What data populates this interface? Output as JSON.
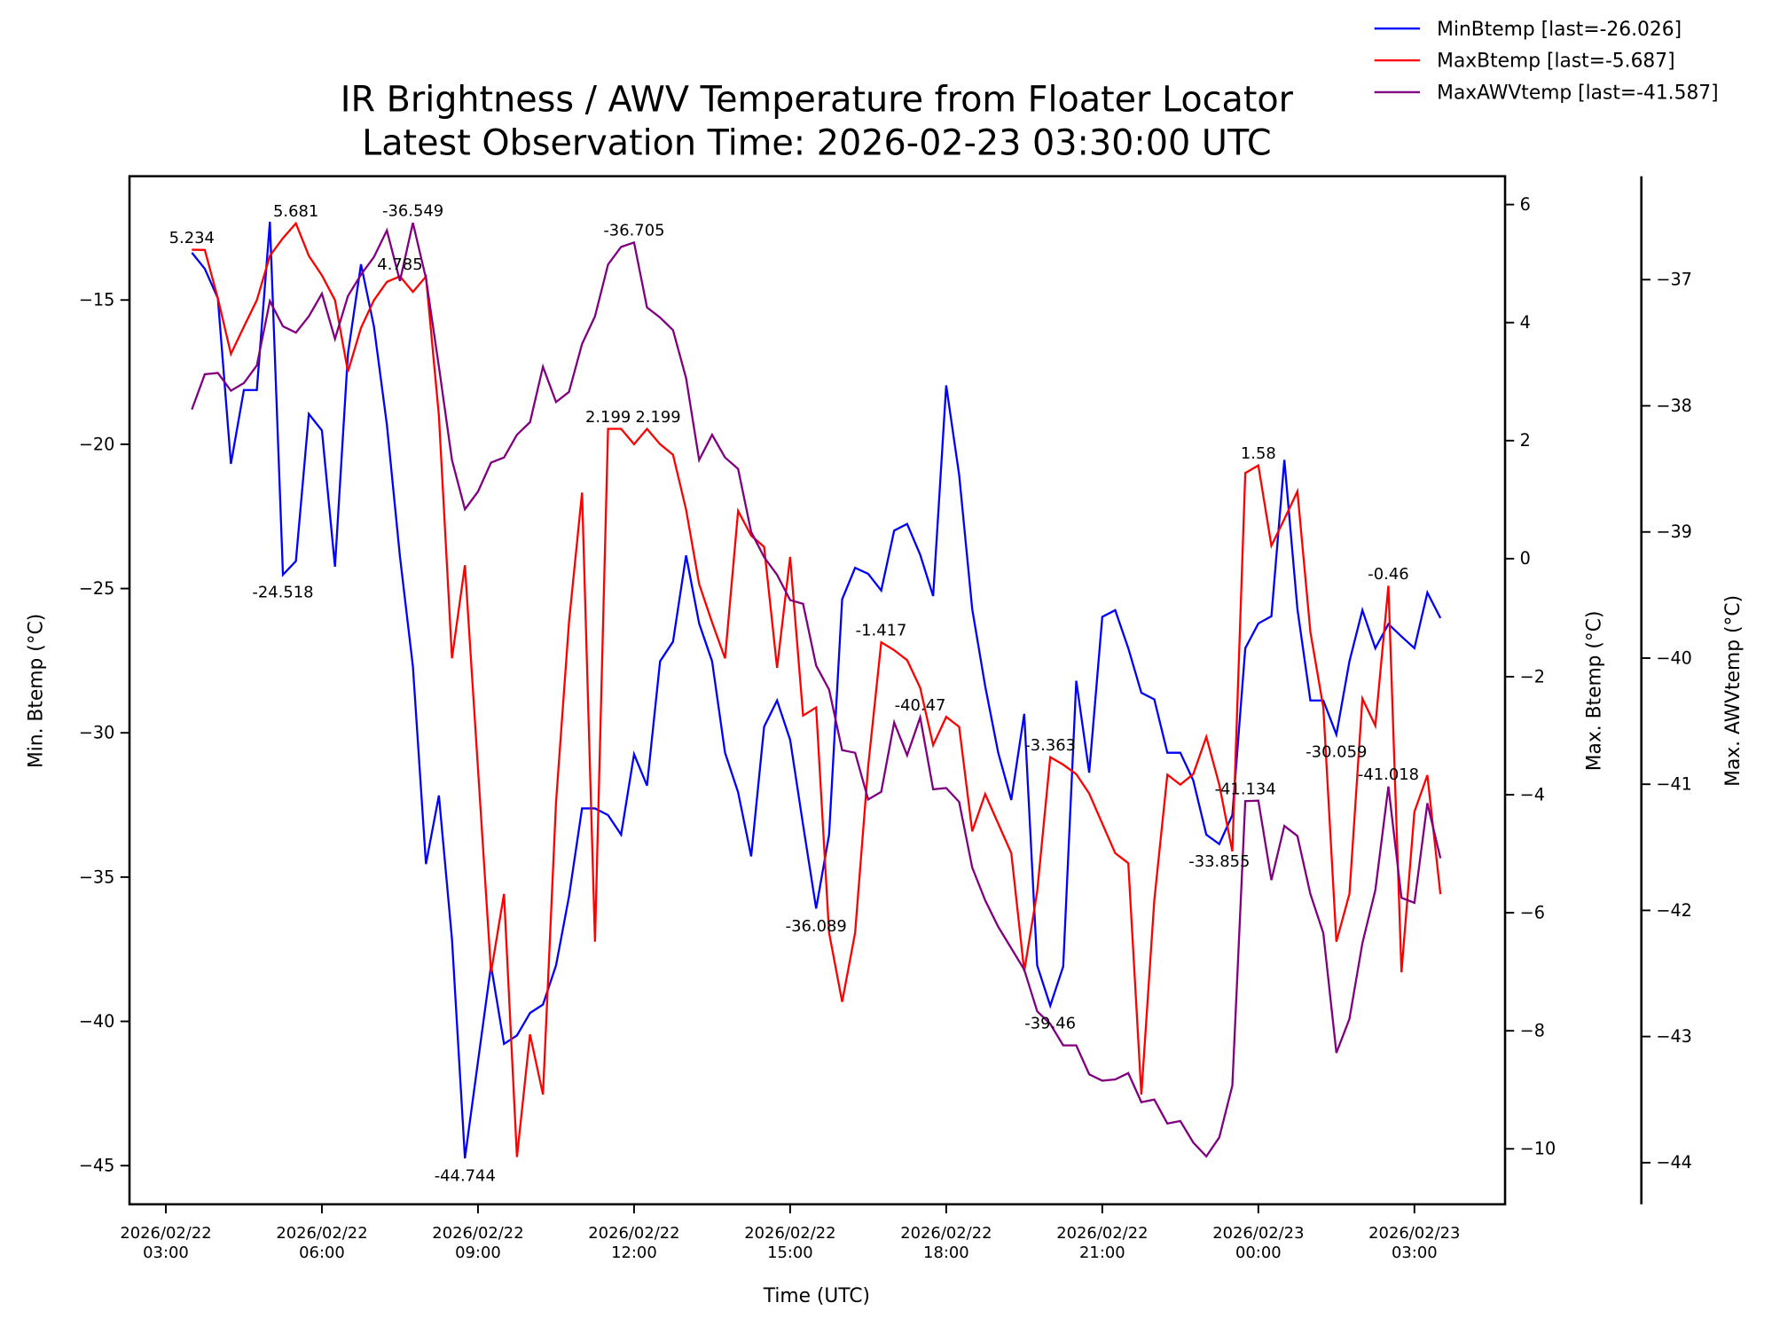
{
  "chart_data": {
    "type": "line",
    "title": "IR Brightness / AWV Temperature from Floater Locator",
    "subtitle": "Latest Observation Time: 2026-02-23 03:30:00 UTC",
    "xlabel": "Time (UTC)",
    "x_start": "2026-02-22 03:30",
    "interval_minutes": 15,
    "x_ticks": [
      {
        "label": [
          "2026/02/22",
          "03:00"
        ],
        "hours": 0
      },
      {
        "label": [
          "2026/02/22",
          "06:00"
        ],
        "hours": 3
      },
      {
        "label": [
          "2026/02/22",
          "09:00"
        ],
        "hours": 6
      },
      {
        "label": [
          "2026/02/22",
          "12:00"
        ],
        "hours": 9
      },
      {
        "label": [
          "2026/02/22",
          "15:00"
        ],
        "hours": 12
      },
      {
        "label": [
          "2026/02/22",
          "18:00"
        ],
        "hours": 15
      },
      {
        "label": [
          "2026/02/22",
          "21:00"
        ],
        "hours": 18
      },
      {
        "label": [
          "2026/02/23",
          "00:00"
        ],
        "hours": 21
      },
      {
        "label": [
          "2026/02/23",
          "03:00"
        ],
        "hours": 24
      }
    ],
    "axes": [
      {
        "id": "min",
        "label": "Min. Btemp (°C)",
        "ylim": [
          -46.34,
          -10.71
        ],
        "ticks": [
          -15,
          -20,
          -25,
          -30,
          -35,
          -40,
          -45
        ]
      },
      {
        "id": "max",
        "label": "Max. Btemp (°C)",
        "ylim": [
          -10.94,
          6.48
        ],
        "ticks": [
          6,
          4,
          2,
          0,
          -2,
          -4,
          -6,
          -8,
          -10
        ]
      },
      {
        "id": "awv",
        "label": "Max. AWVtemp (°C)",
        "ylim": [
          -44.33,
          -36.18
        ],
        "ticks": [
          -37,
          -38,
          -39,
          -40,
          -41,
          -42,
          -43,
          -44
        ]
      }
    ],
    "series": [
      {
        "name": "MinBtemp [last=-26.026]",
        "axis": "min",
        "color": "#0000ff",
        "values": [
          -13.36,
          -13.92,
          -14.94,
          -20.68,
          -18.12,
          -18.12,
          -12.29,
          -24.52,
          -24.05,
          -18.95,
          -19.52,
          -24.24,
          -16.87,
          -13.76,
          -15.92,
          -19.32,
          -23.89,
          -27.7,
          -34.55,
          -32.17,
          -37.15,
          -44.744,
          -41.39,
          -38.06,
          -40.78,
          -40.49,
          -39.71,
          -39.42,
          -38.06,
          -35.68,
          -32.62,
          -32.62,
          -32.85,
          -33.53,
          -30.74,
          -31.83,
          -27.52,
          -26.84,
          -23.85,
          -26.21,
          -27.52,
          -30.69,
          -32.06,
          -34.28,
          -29.79,
          -28.88,
          -30.24,
          -33.19,
          -36.089,
          -33.53,
          -25.37,
          -24.28,
          -24.49,
          -25.07,
          -22.99,
          -22.76,
          -23.83,
          -25.26,
          -17.96,
          -21.06,
          -25.71,
          -28.38,
          -30.69,
          -32.33,
          -29.34,
          -38.06,
          -39.46,
          -38.1,
          -28.2,
          -31.38,
          -25.98,
          -25.75,
          -27.07,
          -28.61,
          -28.84,
          -30.69,
          -30.69,
          -31.65,
          -33.53,
          -33.855,
          -32.85,
          -27.07,
          -26.21,
          -25.96,
          -20.54,
          -25.71,
          -28.88,
          -28.88,
          -30.059,
          -27.52,
          -25.75,
          -27.07,
          -26.23,
          -26.66,
          -27.07,
          -25.14,
          -26.026
        ]
      },
      {
        "name": "MaxBtemp [last=-5.687]",
        "axis": "max",
        "color": "#ff0000",
        "values": [
          5.234,
          5.23,
          4.41,
          3.47,
          3.93,
          4.38,
          5.13,
          5.43,
          5.681,
          5.13,
          4.8,
          4.38,
          3.17,
          3.91,
          4.38,
          4.69,
          4.785,
          4.52,
          4.78,
          2.42,
          -1.69,
          -0.11,
          -3.56,
          -7.01,
          -5.68,
          -10.14,
          -8.06,
          -9.08,
          -4.13,
          -1.08,
          1.12,
          -6.49,
          2.199,
          2.199,
          1.94,
          2.2,
          1.94,
          1.76,
          0.83,
          -0.43,
          -1.08,
          -1.69,
          0.81,
          0.39,
          0.2,
          -1.85,
          0.03,
          -2.66,
          -2.52,
          -6.34,
          -7.51,
          -6.34,
          -3.52,
          -1.417,
          -1.55,
          -1.72,
          -2.19,
          -3.16,
          -2.68,
          -2.85,
          -4.62,
          -3.99,
          -4.49,
          -4.99,
          -6.99,
          -5.64,
          -3.363,
          -3.49,
          -3.65,
          -3.98,
          -4.49,
          -4.99,
          -5.16,
          -9.08,
          -5.79,
          -3.66,
          -3.83,
          -3.65,
          -3.02,
          -3.83,
          -4.96,
          1.45,
          1.58,
          0.22,
          0.67,
          1.14,
          -1.24,
          -2.52,
          -6.49,
          -5.68,
          -2.37,
          -2.83,
          -0.46,
          -7.01,
          -4.29,
          -3.67,
          -5.687
        ]
      },
      {
        "name": "MaxAWVtemp [last=-41.587]",
        "axis": "awv",
        "color": "#800080",
        "values": [
          -38.03,
          -37.75,
          -37.74,
          -37.88,
          -37.82,
          -37.68,
          -37.17,
          -37.37,
          -37.42,
          -37.29,
          -37.11,
          -37.47,
          -37.13,
          -36.96,
          -36.82,
          -36.61,
          -37.01,
          -36.549,
          -36.99,
          -37.69,
          -38.43,
          -38.82,
          -38.68,
          -38.45,
          -38.41,
          -38.23,
          -38.13,
          -37.69,
          -37.97,
          -37.89,
          -37.51,
          -37.29,
          -36.88,
          -36.74,
          -36.705,
          -37.22,
          -37.3,
          -37.4,
          -37.78,
          -38.43,
          -38.23,
          -38.41,
          -38.5,
          -39.0,
          -39.2,
          -39.34,
          -39.54,
          -39.57,
          -40.06,
          -40.25,
          -40.73,
          -40.75,
          -41.12,
          -41.06,
          -40.51,
          -40.77,
          -40.47,
          -41.04,
          -41.03,
          -41.14,
          -41.66,
          -41.92,
          -42.13,
          -42.3,
          -42.47,
          -42.8,
          -42.9,
          -43.07,
          -43.07,
          -43.3,
          -43.35,
          -43.34,
          -43.29,
          -43.52,
          -43.5,
          -43.69,
          -43.67,
          -43.84,
          -43.95,
          -43.8,
          -43.39,
          -41.134,
          -41.13,
          -41.76,
          -41.33,
          -41.41,
          -41.87,
          -42.18,
          -43.13,
          -42.86,
          -42.26,
          -41.84,
          -41.018,
          -41.9,
          -41.94,
          -41.15,
          -41.587
        ]
      }
    ],
    "annotations": [
      {
        "text": "5.234",
        "series": 1,
        "index": 0,
        "pos": "above"
      },
      {
        "text": "5.681",
        "series": 1,
        "index": 8,
        "pos": "above"
      },
      {
        "text": "-24.518",
        "series": 0,
        "index": 7,
        "pos": "below"
      },
      {
        "text": "-36.549",
        "series": 2,
        "index": 17,
        "pos": "above"
      },
      {
        "text": "4.785",
        "series": 1,
        "index": 16,
        "pos": "above"
      },
      {
        "text": "-44.744",
        "series": 0,
        "index": 21,
        "pos": "below"
      },
      {
        "text": "-36.705",
        "series": 2,
        "index": 34,
        "pos": "above"
      },
      {
        "text": "2.199",
        "series": 1,
        "index": 32,
        "pos": "above"
      },
      {
        "text": "2.199",
        "series": 1,
        "index": 33,
        "pos": "above"
      },
      {
        "text": "-36.089",
        "series": 0,
        "index": 48,
        "pos": "below"
      },
      {
        "text": "-1.417",
        "series": 1,
        "index": 53,
        "pos": "above"
      },
      {
        "text": "-40.47",
        "series": 2,
        "index": 56,
        "pos": "above"
      },
      {
        "text": "-3.363",
        "series": 1,
        "index": 66,
        "pos": "above"
      },
      {
        "text": "-39.46",
        "series": 0,
        "index": 66,
        "pos": "below"
      },
      {
        "text": "-33.855",
        "series": 0,
        "index": 79,
        "pos": "below"
      },
      {
        "text": "-41.134",
        "series": 2,
        "index": 81,
        "pos": "above"
      },
      {
        "text": "1.58",
        "series": 1,
        "index": 82,
        "pos": "above"
      },
      {
        "text": "-30.059",
        "series": 0,
        "index": 88,
        "pos": "below"
      },
      {
        "text": "-0.46",
        "series": 1,
        "index": 92,
        "pos": "above"
      },
      {
        "text": "-41.018",
        "series": 2,
        "index": 92,
        "pos": "above"
      }
    ],
    "legend": "top-right",
    "grid": false
  }
}
